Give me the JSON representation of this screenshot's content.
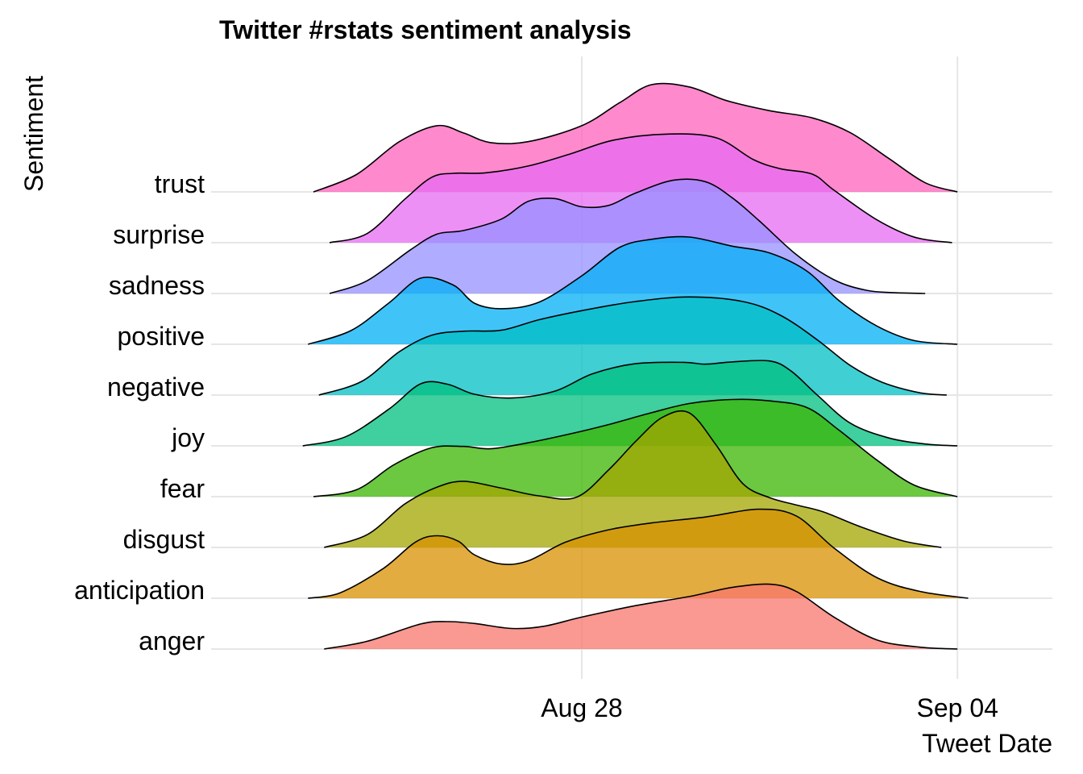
{
  "chart_data": {
    "type": "ridgeline",
    "title": "Twitter #rstats sentiment analysis",
    "xlabel": "Tweet Date",
    "ylabel": "Sentiment",
    "x_ticks": [
      {
        "label": "Aug 28",
        "day": 28
      },
      {
        "label": "Sep 04",
        "day": 35
      }
    ],
    "xlim_days": [
      20.9,
      36.8
    ],
    "grid": true,
    "legend": "none",
    "ridge_scale": 2.65,
    "categories": [
      "anger",
      "anticipation",
      "disgust",
      "fear",
      "joy",
      "negative",
      "positive",
      "sadness",
      "surprise",
      "trust"
    ],
    "series": [
      {
        "name": "anger",
        "color": "#F8766D",
        "x": [
          23.2,
          24.0,
          25.0,
          25.5,
          26.0,
          26.7,
          27.3,
          28.0,
          29.0,
          30.0,
          30.8,
          31.5,
          32.0,
          32.7,
          33.5,
          34.3,
          35.0
        ],
        "y": [
          0.0,
          0.17,
          0.55,
          0.6,
          0.56,
          0.45,
          0.5,
          0.7,
          0.95,
          1.15,
          1.35,
          1.42,
          1.26,
          0.7,
          0.2,
          0.04,
          0.0
        ]
      },
      {
        "name": "anticipation",
        "color": "#D89000",
        "x": [
          22.9,
          23.5,
          24.3,
          24.9,
          25.3,
          25.7,
          26.0,
          26.5,
          27.0,
          27.7,
          28.5,
          29.3,
          30.3,
          31.3,
          32.0,
          32.7,
          33.5,
          34.3,
          35.2
        ],
        "y": [
          0.0,
          0.12,
          0.65,
          1.23,
          1.37,
          1.25,
          0.95,
          0.75,
          0.82,
          1.23,
          1.5,
          1.65,
          1.78,
          1.95,
          1.8,
          1.1,
          0.45,
          0.15,
          0.0
        ]
      },
      {
        "name": "disgust",
        "color": "#A3A500",
        "x": [
          23.2,
          24.0,
          24.7,
          25.3,
          25.8,
          26.5,
          27.2,
          27.9,
          28.5,
          29.0,
          29.5,
          30.0,
          30.5,
          31.0,
          31.5,
          32.0,
          32.5,
          33.2,
          34.0,
          34.7
        ],
        "y": [
          0.0,
          0.28,
          0.95,
          1.32,
          1.45,
          1.3,
          1.13,
          1.1,
          1.7,
          2.32,
          2.85,
          2.95,
          2.25,
          1.4,
          1.09,
          0.93,
          0.78,
          0.45,
          0.14,
          0.0
        ]
      },
      {
        "name": "fear",
        "color": "#39B600",
        "x": [
          23.0,
          23.8,
          24.5,
          25.2,
          25.8,
          26.3,
          27.0,
          27.8,
          28.5,
          29.3,
          30.0,
          30.8,
          31.5,
          32.2,
          32.8,
          33.5,
          34.2,
          35.0
        ],
        "y": [
          0.0,
          0.15,
          0.7,
          1.07,
          1.1,
          1.05,
          1.18,
          1.38,
          1.58,
          1.84,
          2.04,
          2.13,
          2.1,
          1.95,
          1.45,
          0.8,
          0.25,
          0.0
        ]
      },
      {
        "name": "joy",
        "color": "#00BF7D",
        "x": [
          22.8,
          23.6,
          24.4,
          25.0,
          25.5,
          26.0,
          26.7,
          27.5,
          28.2,
          29.0,
          29.9,
          30.3,
          30.8,
          31.5,
          31.9,
          32.4,
          33.0,
          33.7,
          34.4,
          35.0
        ],
        "y": [
          0.0,
          0.2,
          0.8,
          1.36,
          1.35,
          1.13,
          1.05,
          1.2,
          1.58,
          1.8,
          1.83,
          1.79,
          1.84,
          1.86,
          1.64,
          1.1,
          0.5,
          0.18,
          0.04,
          0.0
        ]
      },
      {
        "name": "negative",
        "color": "#00BFC4",
        "x": [
          23.1,
          23.9,
          24.6,
          25.2,
          25.8,
          26.5,
          27.2,
          28.0,
          29.0,
          30.0,
          31.0,
          31.7,
          32.4,
          33.0,
          33.6,
          34.3,
          34.8
        ],
        "y": [
          0.0,
          0.3,
          0.95,
          1.31,
          1.4,
          1.42,
          1.65,
          1.85,
          2.05,
          2.15,
          2.05,
          1.75,
          1.2,
          0.65,
          0.28,
          0.05,
          0.0
        ]
      },
      {
        "name": "positive",
        "color": "#00B0F6",
        "x": [
          22.9,
          23.7,
          24.4,
          25.0,
          25.6,
          26.0,
          26.5,
          27.2,
          28.0,
          28.7,
          29.3,
          30.0,
          30.8,
          31.5,
          32.2,
          32.8,
          33.5,
          34.2,
          35.0
        ],
        "y": [
          0.0,
          0.3,
          0.9,
          1.45,
          1.3,
          0.9,
          0.78,
          0.92,
          1.5,
          2.12,
          2.3,
          2.35,
          2.15,
          2.0,
          1.6,
          0.95,
          0.4,
          0.08,
          0.0
        ]
      },
      {
        "name": "sadness",
        "color": "#9590FF",
        "x": [
          23.3,
          24.0,
          24.8,
          25.3,
          25.8,
          26.5,
          27.0,
          27.5,
          28.0,
          28.5,
          29.0,
          29.7,
          30.3,
          30.8,
          31.3,
          32.0,
          32.7,
          33.3,
          33.8,
          34.4
        ],
        "y": [
          0.0,
          0.28,
          0.95,
          1.3,
          1.38,
          1.63,
          2.02,
          2.08,
          1.9,
          1.93,
          2.2,
          2.48,
          2.45,
          2.1,
          1.6,
          0.85,
          0.3,
          0.07,
          0.02,
          0.0
        ]
      },
      {
        "name": "surprise",
        "color": "#E76BF3",
        "x": [
          23.3,
          24.0,
          24.7,
          25.2,
          25.6,
          26.2,
          27.0,
          27.8,
          28.6,
          29.6,
          30.5,
          31.2,
          31.7,
          32.3,
          32.7,
          33.5,
          34.2,
          34.9
        ],
        "y": [
          0.0,
          0.2,
          0.95,
          1.43,
          1.52,
          1.53,
          1.68,
          1.95,
          2.25,
          2.38,
          2.3,
          1.82,
          1.62,
          1.5,
          1.15,
          0.5,
          0.12,
          0.0
        ]
      },
      {
        "name": "trust",
        "color": "#FF62BC",
        "x": [
          23.0,
          23.8,
          24.6,
          25.3,
          25.8,
          26.3,
          27.0,
          28.0,
          28.7,
          29.3,
          30.0,
          30.7,
          31.5,
          32.3,
          33.0,
          33.7,
          34.4,
          35.0
        ],
        "y": [
          0.0,
          0.38,
          1.1,
          1.45,
          1.29,
          1.08,
          1.1,
          1.45,
          1.95,
          2.35,
          2.3,
          2.0,
          1.78,
          1.62,
          1.3,
          0.75,
          0.2,
          0.0
        ]
      }
    ]
  }
}
